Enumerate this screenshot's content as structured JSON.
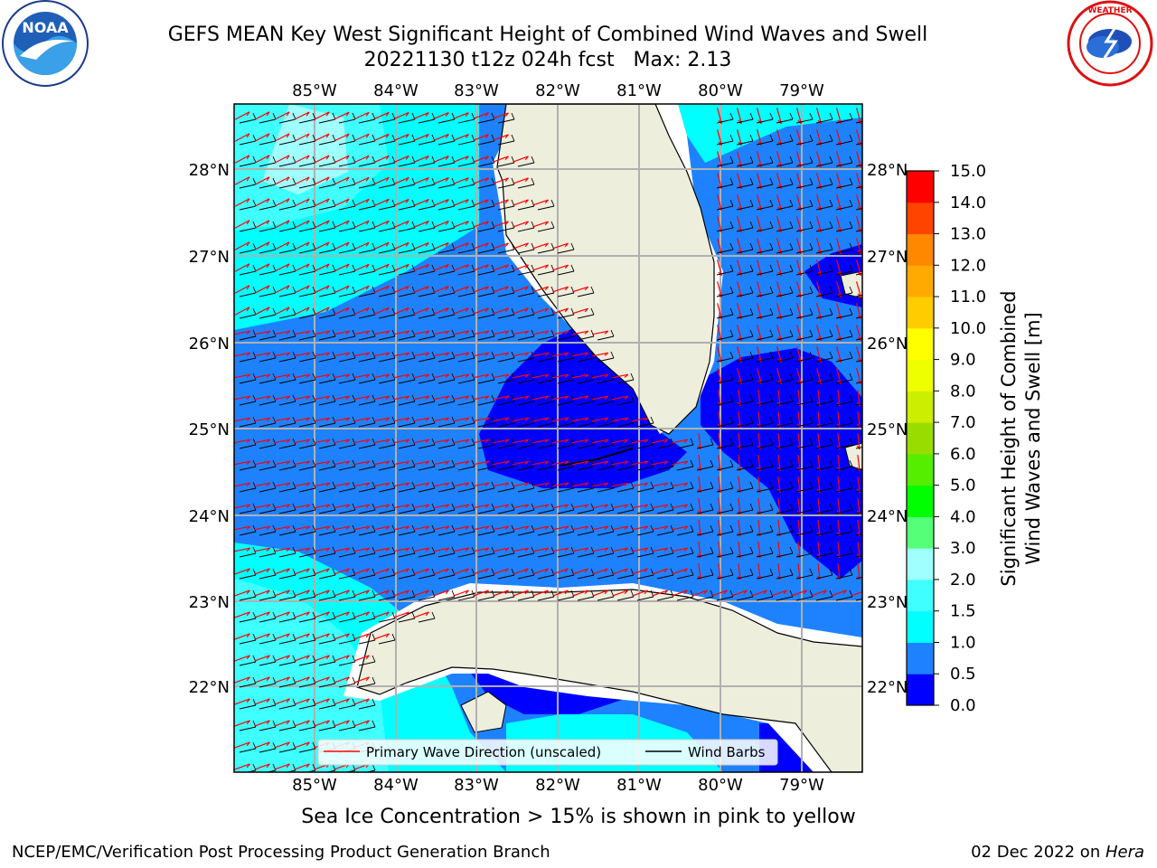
{
  "title": {
    "line1": "GEFS MEAN Key West Significant Height of Combined Wind Waves and Swell",
    "line2": "20221130 t12z 024h fcst   Max: 2.13"
  },
  "logos": {
    "left": {
      "text": "NOAA",
      "ring_text": "NATIONAL OCEANIC AND ATMOSPHERIC ADMINISTRATION · U.S. DEPARTMENT OF COMMERCE"
    },
    "right": {
      "ring_text": "NATIONAL WEATHER SERVICE"
    }
  },
  "map": {
    "lon_labels": [
      "85°W",
      "84°W",
      "83°W",
      "82°W",
      "81°W",
      "80°W",
      "79°W"
    ],
    "lat_labels": [
      "28°N",
      "27°N",
      "26°N",
      "25°N",
      "24°N",
      "23°N",
      "22°N"
    ],
    "colors": {
      "land": "#eeeedd",
      "grid": "#b0b0b0",
      "wave_arrow": "#ff0000",
      "wind_barb": "#000000"
    }
  },
  "legend": {
    "wave_label": "Primary Wave Direction (unscaled)",
    "wind_label": "Wind Barbs"
  },
  "colorbar": {
    "label_line1": "Significant Height of Combined",
    "label_line2": "Wind Waves and Swell [m]",
    "ticks": [
      "0.0",
      "0.5",
      "1.0",
      "1.5",
      "2.0",
      "3.0",
      "4.0",
      "5.0",
      "6.0",
      "7.0",
      "8.0",
      "9.0",
      "10.0",
      "11.0",
      "12.0",
      "13.0",
      "14.0",
      "15.0"
    ],
    "colors": [
      "#0000ff",
      "#1e82ff",
      "#00ffff",
      "#40ffff",
      "#a0ffff",
      "#55ff77",
      "#00ff00",
      "#55ee00",
      "#99dd00",
      "#ccee00",
      "#eeff00",
      "#ffff00",
      "#ffcc00",
      "#ffaa00",
      "#ff8800",
      "#ff4400",
      "#ff0000"
    ]
  },
  "subcaption": "Sea Ice Concentration > 15% is shown in pink to yellow",
  "footer": {
    "left": "NCEP/EMC/Verification Post Processing Product Generation Branch",
    "right_prefix": "02 Dec 2022 on ",
    "right_host": "Hera"
  }
}
